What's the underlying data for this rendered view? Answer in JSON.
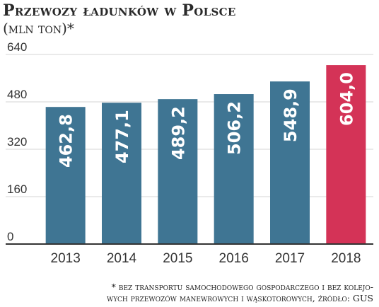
{
  "title": "Przewozy ładunków w Polsce",
  "subtitle": "(mln ton)*",
  "footnote": {
    "line1": "* bez transportu samochodowego gospodarczego i bez kolejo-",
    "line2": "wych przewozów manewrowych i wąskotorowych, źródło: GUS"
  },
  "colors": {
    "bar": "#3f7593",
    "highlight": "#d43357",
    "grid": "#d6d6d6",
    "axis": "#333333",
    "label": "#ffffff"
  },
  "chart_data": {
    "type": "bar",
    "title": "Przewozy ładunków w Polsce",
    "subtitle": "(mln ton)*",
    "categories": [
      "2013",
      "2014",
      "2015",
      "2016",
      "2017",
      "2018"
    ],
    "values": [
      462.8,
      477.1,
      489.2,
      506.2,
      548.9,
      604.0
    ],
    "value_labels": [
      "462,8",
      "477,1",
      "489,2",
      "506,2",
      "548,9",
      "604,0"
    ],
    "highlight_index": 5,
    "ylim": [
      0,
      640
    ],
    "yticks": [
      0,
      160,
      320,
      480,
      640
    ],
    "grid": true,
    "xlabel": "",
    "ylabel": ""
  }
}
